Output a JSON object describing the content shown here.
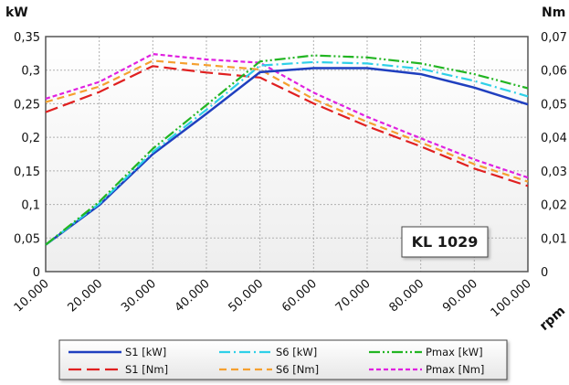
{
  "chart_data": {
    "type": "line",
    "badge": "KL 1029",
    "left_unit": "kW",
    "right_unit": "Nm",
    "x_unit": "rpm",
    "x": [
      10000,
      20000,
      30000,
      40000,
      50000,
      60000,
      70000,
      80000,
      90000,
      100000
    ],
    "x_tick_labels": [
      "10.000",
      "20.000",
      "30.000",
      "40.000",
      "50.000",
      "60.000",
      "70.000",
      "80.000",
      "90.000",
      "100.000"
    ],
    "xlim": [
      10000,
      100000
    ],
    "left_ylim": [
      0,
      0.35
    ],
    "left_ticks": [
      {
        "value": 0,
        "label": "0"
      },
      {
        "value": 0.05,
        "label": "0,05"
      },
      {
        "value": 0.1,
        "label": "0,1"
      },
      {
        "value": 0.15,
        "label": "0,15"
      },
      {
        "value": 0.2,
        "label": "0,2"
      },
      {
        "value": 0.25,
        "label": "0,25"
      },
      {
        "value": 0.3,
        "label": "0,3"
      },
      {
        "value": 0.35,
        "label": "0,35"
      }
    ],
    "right_ylim": [
      0,
      0.07
    ],
    "right_ticks": [
      {
        "value": 0,
        "label": "0"
      },
      {
        "value": 0.01,
        "label": "0,01"
      },
      {
        "value": 0.02,
        "label": "0,02"
      },
      {
        "value": 0.03,
        "label": "0,03"
      },
      {
        "value": 0.04,
        "label": "0,04"
      },
      {
        "value": 0.05,
        "label": "0,05"
      },
      {
        "value": 0.06,
        "label": "0,06"
      },
      {
        "value": 0.07,
        "label": "0,07"
      }
    ],
    "grid": true,
    "legend_position": "bottom",
    "series": [
      {
        "name": "S1 [kW]",
        "axis": "left",
        "color": "#1f3fbf",
        "dash": "solid",
        "values": [
          0.04,
          0.099,
          0.175,
          0.235,
          0.297,
          0.303,
          0.303,
          0.294,
          0.274,
          0.249
        ]
      },
      {
        "name": "S6 [kW]",
        "axis": "left",
        "color": "#2ed0e8",
        "dash": "dash-dot",
        "values": [
          0.04,
          0.101,
          0.178,
          0.241,
          0.307,
          0.312,
          0.31,
          0.302,
          0.284,
          0.261
        ]
      },
      {
        "name": "Pmax [kW]",
        "axis": "left",
        "color": "#22b522",
        "dash": "dash-dot-dot",
        "values": [
          0.04,
          0.104,
          0.183,
          0.248,
          0.313,
          0.322,
          0.319,
          0.31,
          0.294,
          0.273
        ]
      },
      {
        "name": "S1 [Nm]",
        "axis": "right",
        "color": "#e02020",
        "dash": "long-dash",
        "values": [
          0.0475,
          0.0535,
          0.0612,
          0.0593,
          0.0578,
          0.0501,
          0.0433,
          0.0373,
          0.0307,
          0.0255
        ]
      },
      {
        "name": "S6 [Nm]",
        "axis": "right",
        "color": "#f5a030",
        "dash": "dash",
        "values": [
          0.0505,
          0.0551,
          0.0628,
          0.0615,
          0.0602,
          0.0514,
          0.0446,
          0.0385,
          0.032,
          0.0268
        ]
      },
      {
        "name": "Pmax [Nm]",
        "axis": "right",
        "color": "#e020e0",
        "dash": "short-dash",
        "values": [
          0.0515,
          0.0565,
          0.0648,
          0.0632,
          0.0622,
          0.0533,
          0.0461,
          0.0397,
          0.0334,
          0.028
        ]
      }
    ]
  }
}
